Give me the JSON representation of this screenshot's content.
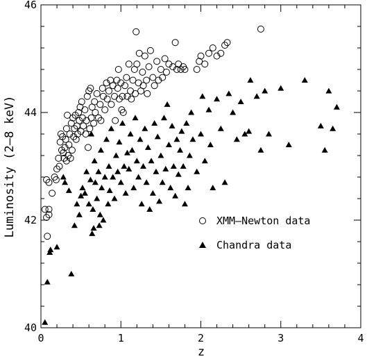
{
  "chart_data": {
    "type": "scatter",
    "title": "",
    "xlabel": "z",
    "ylabel": "Luminosity (2–8 keV)",
    "xlim": [
      0,
      4
    ],
    "ylim": [
      40,
      46
    ],
    "xticks": [
      0,
      1,
      2,
      3,
      4
    ],
    "yticks": [
      40,
      42,
      44,
      46
    ],
    "grid": false,
    "legend_position": "center-right",
    "series": [
      {
        "name": "XMM–Newton data",
        "marker": "open-circle",
        "color": "#000000",
        "points": [
          [
            0.05,
            42.2
          ],
          [
            0.07,
            42.05
          ],
          [
            0.08,
            41.7
          ],
          [
            0.1,
            42.1
          ],
          [
            0.1,
            42.2
          ],
          [
            0.07,
            42.75
          ],
          [
            0.1,
            42.7
          ],
          [
            0.14,
            42.5
          ],
          [
            0.17,
            42.8
          ],
          [
            0.19,
            42.75
          ],
          [
            0.2,
            42.95
          ],
          [
            0.22,
            43.15
          ],
          [
            0.23,
            43.0
          ],
          [
            0.24,
            43.45
          ],
          [
            0.25,
            43.6
          ],
          [
            0.26,
            43.3
          ],
          [
            0.27,
            43.55
          ],
          [
            0.28,
            43.25
          ],
          [
            0.29,
            43.15
          ],
          [
            0.3,
            43.35
          ],
          [
            0.31,
            43.5
          ],
          [
            0.32,
            43.7
          ],
          [
            0.32,
            43.1
          ],
          [
            0.33,
            43.95
          ],
          [
            0.34,
            43.2
          ],
          [
            0.35,
            43.4
          ],
          [
            0.36,
            43.6
          ],
          [
            0.37,
            43.15
          ],
          [
            0.38,
            43.8
          ],
          [
            0.39,
            43.3
          ],
          [
            0.4,
            43.9
          ],
          [
            0.41,
            43.55
          ],
          [
            0.42,
            43.7
          ],
          [
            0.43,
            43.95
          ],
          [
            0.44,
            43.5
          ],
          [
            0.45,
            43.75
          ],
          [
            0.46,
            43.6
          ],
          [
            0.47,
            44.0
          ],
          [
            0.48,
            43.85
          ],
          [
            0.49,
            44.1
          ],
          [
            0.5,
            43.65
          ],
          [
            0.51,
            44.2
          ],
          [
            0.52,
            43.9
          ],
          [
            0.53,
            43.75
          ],
          [
            0.55,
            44.05
          ],
          [
            0.56,
            43.6
          ],
          [
            0.57,
            43.85
          ],
          [
            0.58,
            44.3
          ],
          [
            0.59,
            43.35
          ],
          [
            0.6,
            44.4
          ],
          [
            0.61,
            43.7
          ],
          [
            0.62,
            44.45
          ],
          [
            0.63,
            43.9
          ],
          [
            0.64,
            44.1
          ],
          [
            0.66,
            43.8
          ],
          [
            0.67,
            44.2
          ],
          [
            0.68,
            44.0
          ],
          [
            0.7,
            44.35
          ],
          [
            0.72,
            43.9
          ],
          [
            0.74,
            44.15
          ],
          [
            0.75,
            43.85
          ],
          [
            0.77,
            44.45
          ],
          [
            0.78,
            44.3
          ],
          [
            0.8,
            44.05
          ],
          [
            0.82,
            44.55
          ],
          [
            0.83,
            44.25
          ],
          [
            0.85,
            44.4
          ],
          [
            0.87,
            44.6
          ],
          [
            0.88,
            44.15
          ],
          [
            0.9,
            44.5
          ],
          [
            0.92,
            44.3
          ],
          [
            0.93,
            43.85
          ],
          [
            0.95,
            44.6
          ],
          [
            0.96,
            44.45
          ],
          [
            0.97,
            44.8
          ],
          [
            0.98,
            44.25
          ],
          [
            1.0,
            44.55
          ],
          [
            1.01,
            44.05
          ],
          [
            1.02,
            44.3
          ],
          [
            1.03,
            44.0
          ],
          [
            1.05,
            44.5
          ],
          [
            1.07,
            44.65
          ],
          [
            1.08,
            44.3
          ],
          [
            1.1,
            44.9
          ],
          [
            1.12,
            44.4
          ],
          [
            1.13,
            44.25
          ],
          [
            1.15,
            44.6
          ],
          [
            1.17,
            44.8
          ],
          [
            1.18,
            44.35
          ],
          [
            1.19,
            45.5
          ],
          [
            1.2,
            44.9
          ],
          [
            1.22,
            44.55
          ],
          [
            1.23,
            45.1
          ],
          [
            1.25,
            44.4
          ],
          [
            1.27,
            44.75
          ],
          [
            1.28,
            44.5
          ],
          [
            1.3,
            45.05
          ],
          [
            1.32,
            44.6
          ],
          [
            1.33,
            44.35
          ],
          [
            1.35,
            44.85
          ],
          [
            1.37,
            45.15
          ],
          [
            1.4,
            44.65
          ],
          [
            1.42,
            44.5
          ],
          [
            1.45,
            44.95
          ],
          [
            1.47,
            44.6
          ],
          [
            1.5,
            44.8
          ],
          [
            1.52,
            44.65
          ],
          [
            1.55,
            45.0
          ],
          [
            1.57,
            44.75
          ],
          [
            1.6,
            44.9
          ],
          [
            1.65,
            44.85
          ],
          [
            1.68,
            45.3
          ],
          [
            1.7,
            44.8
          ],
          [
            1.72,
            44.9
          ],
          [
            1.75,
            44.8
          ],
          [
            1.78,
            44.85
          ],
          [
            1.8,
            44.8
          ],
          [
            1.95,
            44.8
          ],
          [
            1.98,
            44.95
          ],
          [
            2.0,
            45.05
          ],
          [
            2.05,
            44.9
          ],
          [
            2.1,
            45.1
          ],
          [
            2.15,
            45.2
          ],
          [
            2.2,
            45.05
          ],
          [
            2.25,
            45.1
          ],
          [
            2.3,
            45.25
          ],
          [
            2.33,
            45.3
          ],
          [
            2.75,
            45.55
          ]
        ]
      },
      {
        "name": "Chandra data",
        "marker": "filled-triangle",
        "color": "#000000",
        "points": [
          [
            0.05,
            40.1
          ],
          [
            0.08,
            40.85
          ],
          [
            0.11,
            41.4
          ],
          [
            0.12,
            41.45
          ],
          [
            0.2,
            41.5
          ],
          [
            0.28,
            42.8
          ],
          [
            0.3,
            42.7
          ],
          [
            0.35,
            42.55
          ],
          [
            0.38,
            41.0
          ],
          [
            0.42,
            41.9
          ],
          [
            0.45,
            42.3
          ],
          [
            0.48,
            42.1
          ],
          [
            0.5,
            42.45
          ],
          [
            0.52,
            42.6
          ],
          [
            0.55,
            42.5
          ],
          [
            0.57,
            42.9
          ],
          [
            0.6,
            42.3
          ],
          [
            0.62,
            42.75
          ],
          [
            0.63,
            43.6
          ],
          [
            0.64,
            41.75
          ],
          [
            0.65,
            42.2
          ],
          [
            0.66,
            41.85
          ],
          [
            0.67,
            43.1
          ],
          [
            0.68,
            42.7
          ],
          [
            0.7,
            42.4
          ],
          [
            0.72,
            42.9
          ],
          [
            0.73,
            41.9
          ],
          [
            0.74,
            42.1
          ],
          [
            0.75,
            43.3
          ],
          [
            0.76,
            42.6
          ],
          [
            0.78,
            42.0
          ],
          [
            0.8,
            42.8
          ],
          [
            0.82,
            43.5
          ],
          [
            0.84,
            42.3
          ],
          [
            0.85,
            43.0
          ],
          [
            0.86,
            42.55
          ],
          [
            0.88,
            43.7
          ],
          [
            0.9,
            42.8
          ],
          [
            0.92,
            42.4
          ],
          [
            0.94,
            43.2
          ],
          [
            0.96,
            42.9
          ],
          [
            0.98,
            43.45
          ],
          [
            1.0,
            42.7
          ],
          [
            1.02,
            43.8
          ],
          [
            1.04,
            43.0
          ],
          [
            1.06,
            42.5
          ],
          [
            1.08,
            43.25
          ],
          [
            1.1,
            42.95
          ],
          [
            1.12,
            43.6
          ],
          [
            1.14,
            43.3
          ],
          [
            1.16,
            42.6
          ],
          [
            1.18,
            43.9
          ],
          [
            1.2,
            43.1
          ],
          [
            1.22,
            42.8
          ],
          [
            1.24,
            43.5
          ],
          [
            1.26,
            42.3
          ],
          [
            1.28,
            43.0
          ],
          [
            1.3,
            43.7
          ],
          [
            1.32,
            42.7
          ],
          [
            1.34,
            43.35
          ],
          [
            1.36,
            42.2
          ],
          [
            1.38,
            43.1
          ],
          [
            1.4,
            42.5
          ],
          [
            1.42,
            43.8
          ],
          [
            1.44,
            42.9
          ],
          [
            1.46,
            43.55
          ],
          [
            1.48,
            42.35
          ],
          [
            1.5,
            43.2
          ],
          [
            1.52,
            42.7
          ],
          [
            1.54,
            43.9
          ],
          [
            1.56,
            42.95
          ],
          [
            1.58,
            44.15
          ],
          [
            1.6,
            43.4
          ],
          [
            1.62,
            42.6
          ],
          [
            1.64,
            43.75
          ],
          [
            1.66,
            43.0
          ],
          [
            1.68,
            42.45
          ],
          [
            1.7,
            43.5
          ],
          [
            1.72,
            42.85
          ],
          [
            1.74,
            43.3
          ],
          [
            1.76,
            43.65
          ],
          [
            1.78,
            43.0
          ],
          [
            1.8,
            42.3
          ],
          [
            1.82,
            43.8
          ],
          [
            1.84,
            42.6
          ],
          [
            1.86,
            43.2
          ],
          [
            1.88,
            44.0
          ],
          [
            1.9,
            43.5
          ],
          [
            1.95,
            42.9
          ],
          [
            2.0,
            43.6
          ],
          [
            2.02,
            44.3
          ],
          [
            2.05,
            43.1
          ],
          [
            2.1,
            44.05
          ],
          [
            2.12,
            43.4
          ],
          [
            2.15,
            42.6
          ],
          [
            2.2,
            44.25
          ],
          [
            2.25,
            43.7
          ],
          [
            2.3,
            42.7
          ],
          [
            2.35,
            44.35
          ],
          [
            2.4,
            44.0
          ],
          [
            2.45,
            43.5
          ],
          [
            2.5,
            44.2
          ],
          [
            2.55,
            43.6
          ],
          [
            2.6,
            43.65
          ],
          [
            2.62,
            44.6
          ],
          [
            2.7,
            44.3
          ],
          [
            2.75,
            43.3
          ],
          [
            2.8,
            44.4
          ],
          [
            2.85,
            43.6
          ],
          [
            3.0,
            44.45
          ],
          [
            3.1,
            43.4
          ],
          [
            3.3,
            44.6
          ],
          [
            3.5,
            43.75
          ],
          [
            3.55,
            43.3
          ],
          [
            3.6,
            44.4
          ],
          [
            3.65,
            43.7
          ],
          [
            3.7,
            44.1
          ]
        ]
      }
    ]
  }
}
